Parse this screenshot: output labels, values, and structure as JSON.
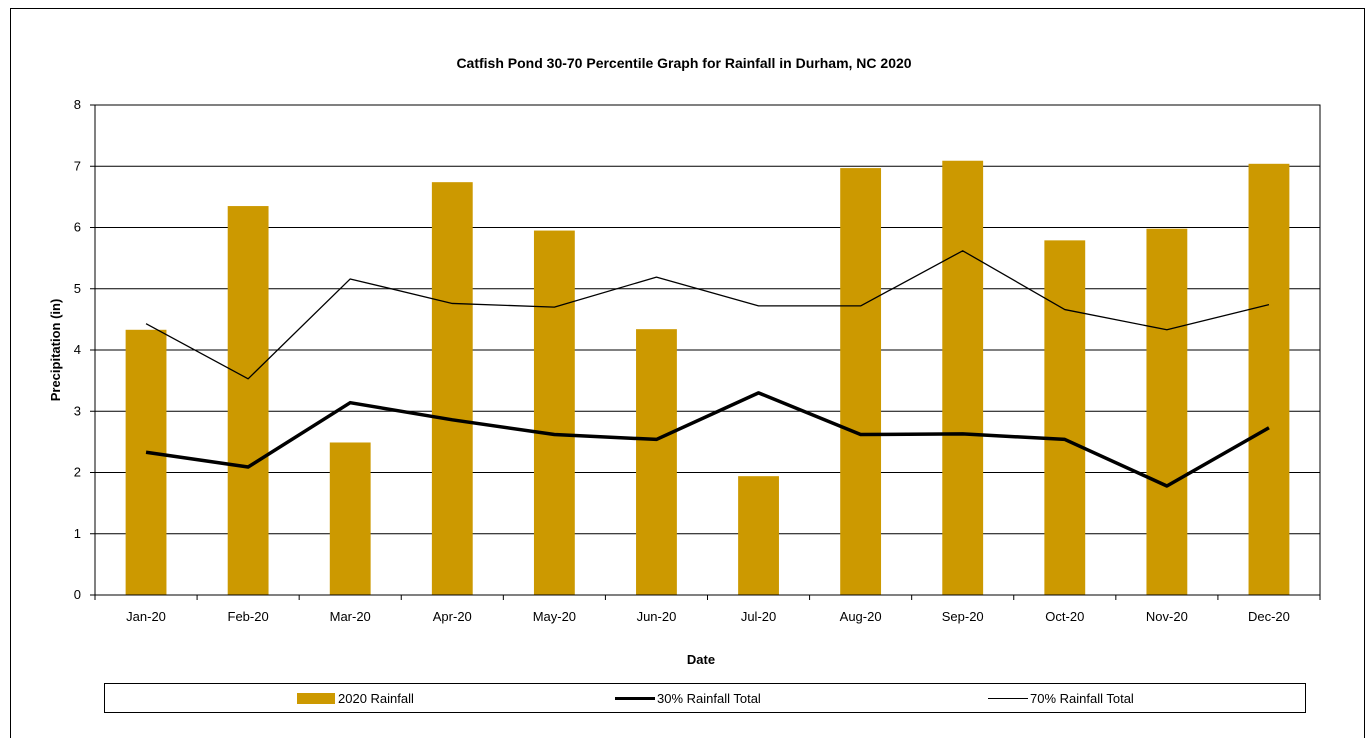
{
  "chart_data": {
    "type": "bar",
    "title": "Catfish Pond 30-70 Percentile Graph for Rainfall in Durham, NC 2020",
    "xlabel": "Date",
    "ylabel": "Precipitation (in)",
    "ylim": [
      0,
      8
    ],
    "yticks": [
      0,
      1,
      2,
      3,
      4,
      5,
      6,
      7,
      8
    ],
    "grid": true,
    "legend_position": "bottom",
    "categories": [
      "Jan-20",
      "Feb-20",
      "Mar-20",
      "Apr-20",
      "May-20",
      "Jun-20",
      "Jul-20",
      "Aug-20",
      "Sep-20",
      "Oct-20",
      "Nov-20",
      "Dec-20"
    ],
    "series": [
      {
        "name": "2020 Rainfall",
        "kind": "bar",
        "color": "#CC9900",
        "values": [
          4.33,
          6.35,
          2.49,
          6.74,
          5.95,
          4.34,
          1.94,
          6.97,
          7.09,
          5.79,
          5.98,
          7.04
        ]
      },
      {
        "name": "30% Rainfall Total",
        "kind": "line",
        "color": "#000000",
        "weight": "thick",
        "values": [
          2.33,
          2.09,
          3.14,
          2.86,
          2.62,
          2.54,
          3.3,
          2.62,
          2.63,
          2.54,
          1.78,
          2.73
        ]
      },
      {
        "name": "70% Rainfall Total",
        "kind": "line",
        "color": "#000000",
        "weight": "thin",
        "values": [
          4.43,
          3.53,
          5.16,
          4.76,
          4.7,
          5.19,
          4.72,
          4.72,
          5.62,
          4.66,
          4.33,
          4.74
        ]
      }
    ]
  }
}
